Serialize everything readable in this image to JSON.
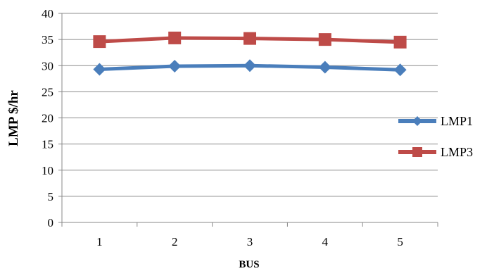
{
  "chart_data": {
    "type": "line",
    "title": "",
    "xlabel": "BUS",
    "ylabel": "LMP $/hr",
    "categories": [
      "1",
      "2",
      "3",
      "4",
      "5"
    ],
    "ylim": [
      0,
      40
    ],
    "yticks": [
      "0",
      "5",
      "10",
      "15",
      "20",
      "25",
      "30",
      "35",
      "40"
    ],
    "grid": true,
    "legend_position": "right",
    "series": [
      {
        "name": "LMP1",
        "values": [
          29.3,
          29.9,
          30.0,
          29.7,
          29.2
        ],
        "color": "#4a7ebb",
        "marker": "diamond"
      },
      {
        "name": "LMP3",
        "values": [
          34.6,
          35.3,
          35.2,
          35.0,
          34.5
        ],
        "color": "#be4b48",
        "marker": "square"
      }
    ]
  }
}
